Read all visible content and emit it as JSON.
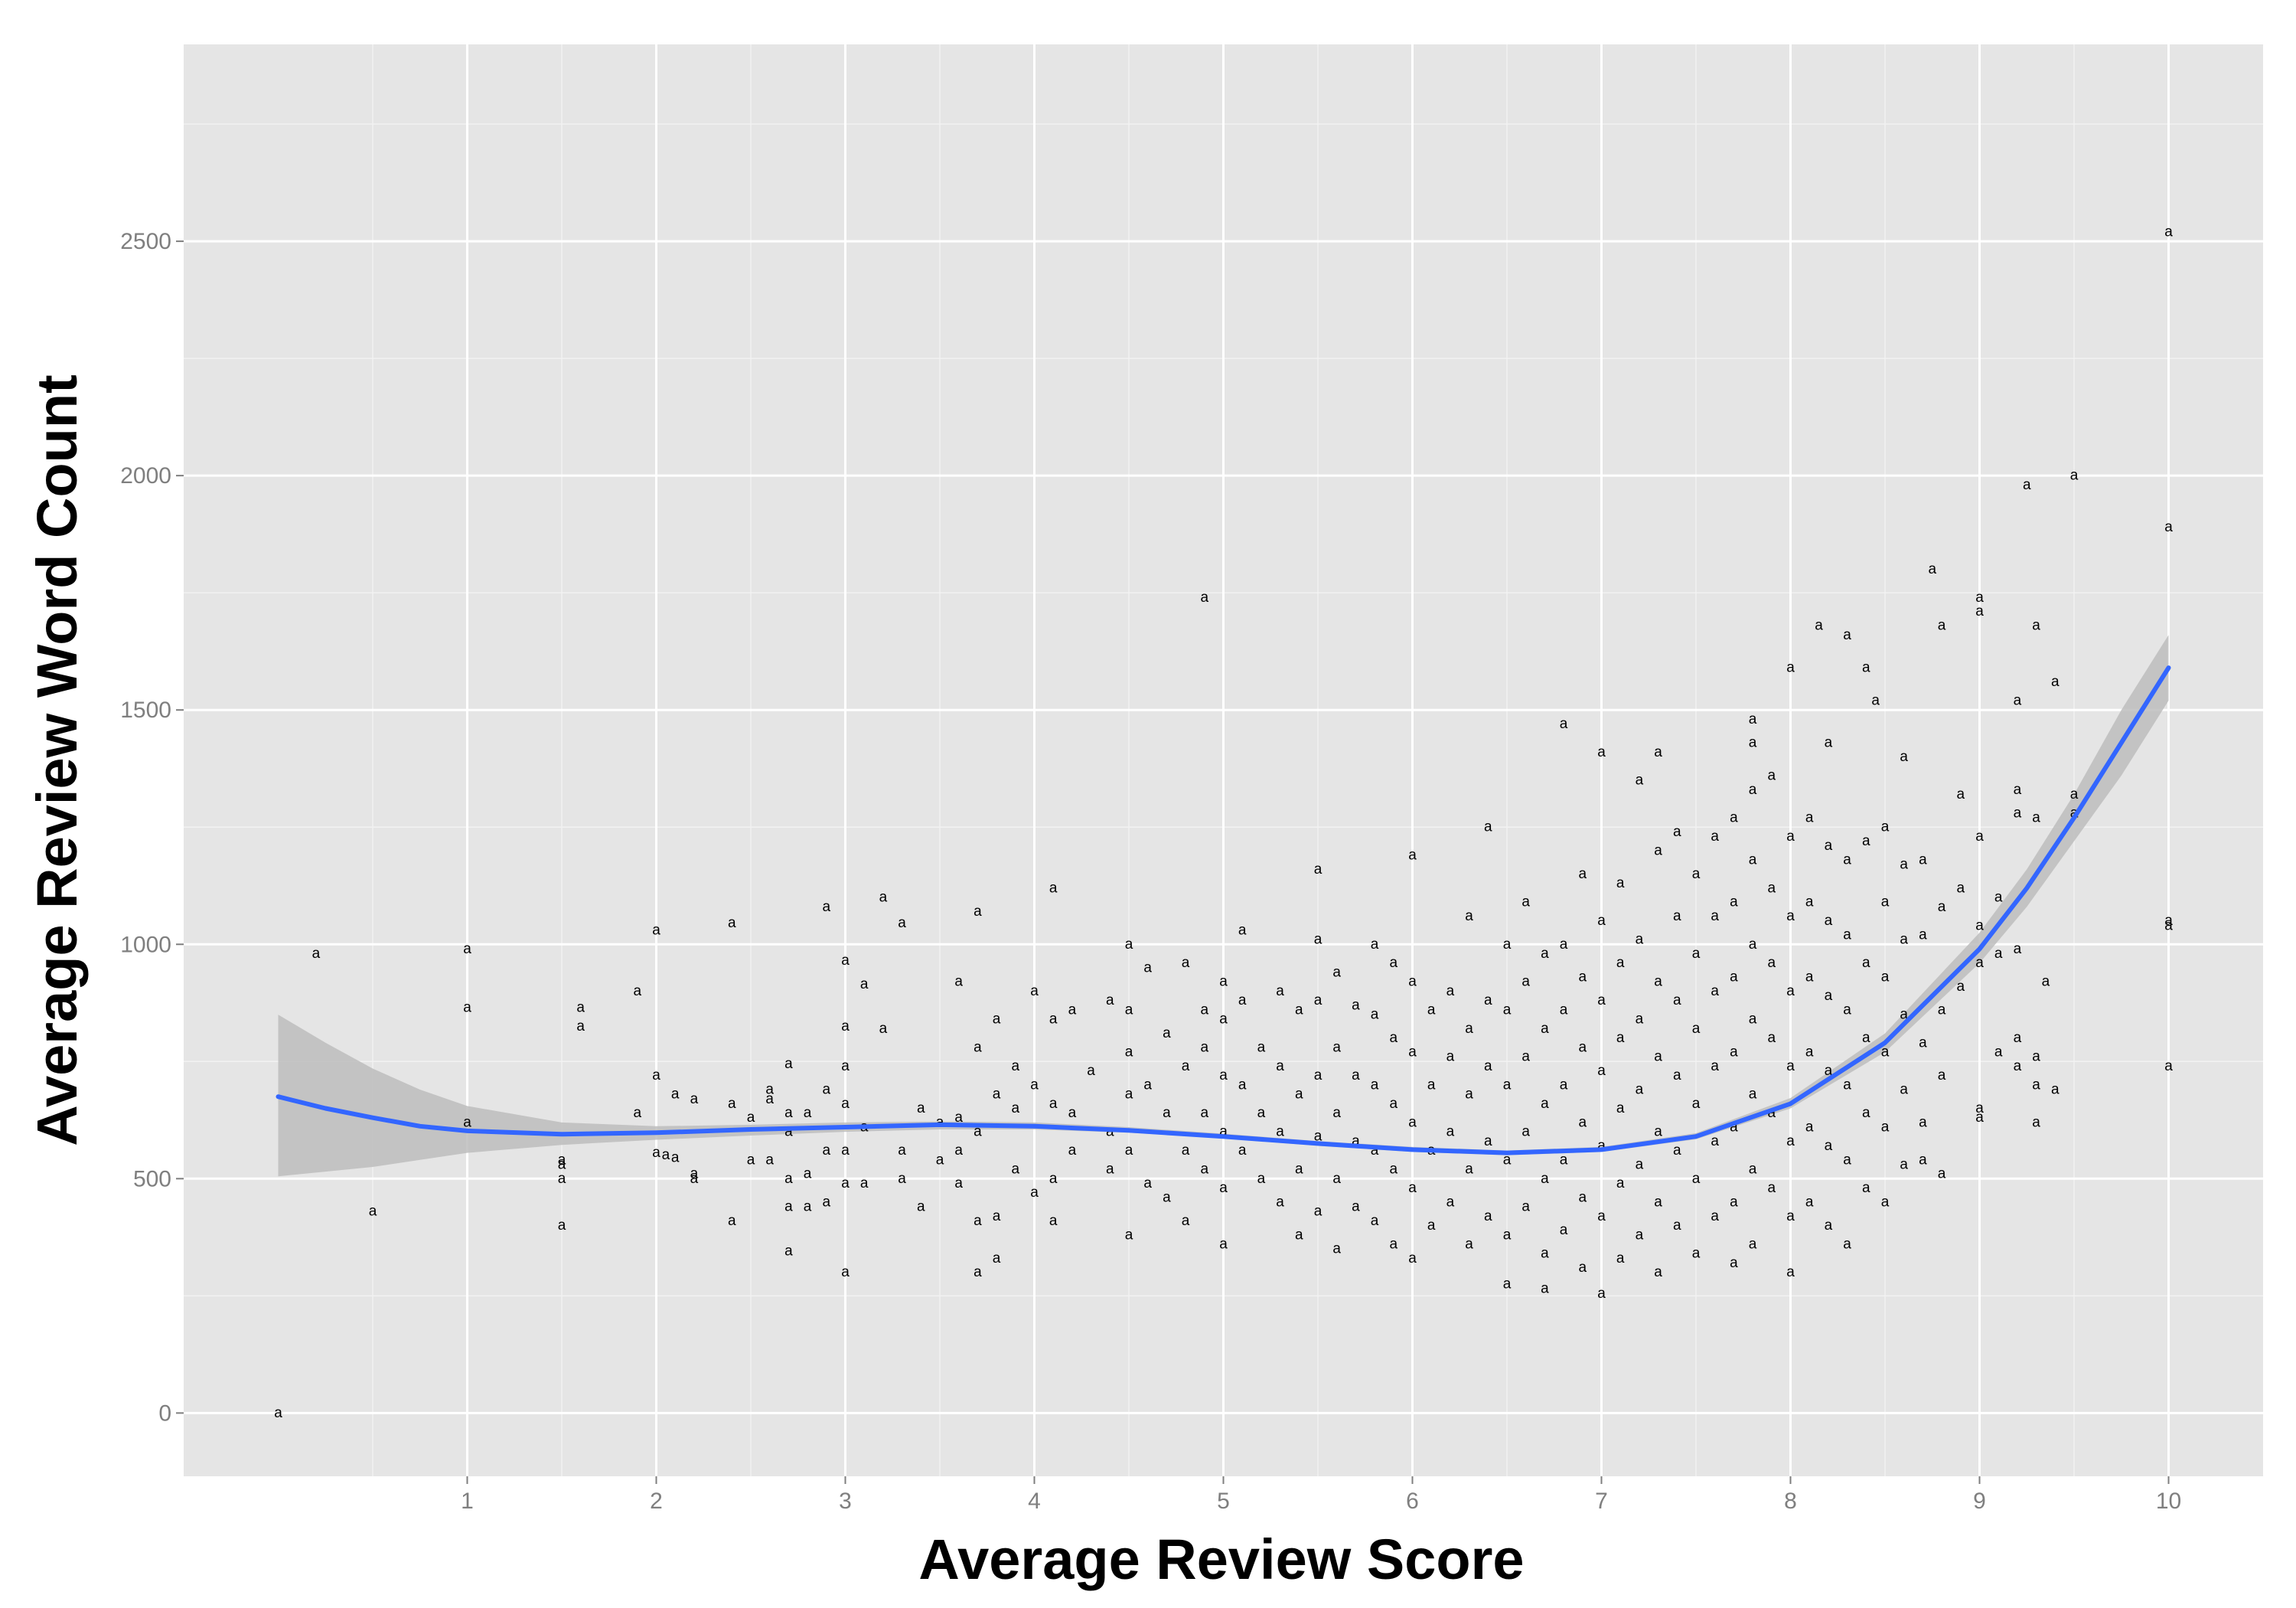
{
  "chart_data": {
    "type": "scatter",
    "title": "",
    "xlabel": "Average Review Score",
    "ylabel": "Average Review Word Count",
    "xlim": [
      -0.5,
      10.5
    ],
    "ylim": [
      -135,
      2920
    ],
    "x_ticks": [
      1,
      2,
      3,
      4,
      5,
      6,
      7,
      8,
      9,
      10
    ],
    "x_tick_labels": [
      "1",
      "2",
      "3",
      "4",
      "5",
      "6",
      "7",
      "8",
      "9",
      "10"
    ],
    "y_ticks": [
      0,
      500,
      1000,
      1500,
      2000,
      2500
    ],
    "y_tick_labels": [
      "0",
      "500",
      "1000",
      "1500",
      "2000",
      "2500"
    ],
    "grid": true,
    "legend": "none",
    "point_glyph": "a",
    "colors": {
      "panel": "#e5e5e5",
      "grid_major": "#ffffff",
      "smooth_line": "#3366ff",
      "confidence_band": "#bdbdbd",
      "points": "#000000"
    },
    "points": [
      [
        0.0,
        0
      ],
      [
        0.2,
        980
      ],
      [
        0.5,
        430
      ],
      [
        1.0,
        990
      ],
      [
        1.0,
        865
      ],
      [
        1.0,
        620
      ],
      [
        1.5,
        540
      ],
      [
        1.5,
        530
      ],
      [
        1.5,
        500
      ],
      [
        1.5,
        400
      ],
      [
        1.6,
        865
      ],
      [
        1.6,
        825
      ],
      [
        1.9,
        900
      ],
      [
        1.9,
        640
      ],
      [
        2.0,
        1030
      ],
      [
        2.0,
        720
      ],
      [
        2.0,
        555
      ],
      [
        2.05,
        550
      ],
      [
        2.1,
        545
      ],
      [
        2.1,
        680
      ],
      [
        2.2,
        670
      ],
      [
        2.2,
        510
      ],
      [
        2.2,
        500
      ],
      [
        2.4,
        1045
      ],
      [
        2.4,
        660
      ],
      [
        2.4,
        410
      ],
      [
        2.5,
        630
      ],
      [
        2.5,
        540
      ],
      [
        2.6,
        690
      ],
      [
        2.6,
        670
      ],
      [
        2.6,
        540
      ],
      [
        2.7,
        745
      ],
      [
        2.7,
        640
      ],
      [
        2.7,
        600
      ],
      [
        2.7,
        500
      ],
      [
        2.7,
        440
      ],
      [
        2.7,
        345
      ],
      [
        2.8,
        640
      ],
      [
        2.8,
        510
      ],
      [
        2.8,
        440
      ],
      [
        2.9,
        1080
      ],
      [
        2.9,
        690
      ],
      [
        2.9,
        560
      ],
      [
        2.9,
        450
      ],
      [
        3.0,
        965
      ],
      [
        3.0,
        825
      ],
      [
        3.0,
        740
      ],
      [
        3.0,
        660
      ],
      [
        3.0,
        560
      ],
      [
        3.0,
        490
      ],
      [
        3.0,
        300
      ],
      [
        3.1,
        915
      ],
      [
        3.1,
        610
      ],
      [
        3.1,
        490
      ],
      [
        3.2,
        1100
      ],
      [
        3.2,
        820
      ],
      [
        3.3,
        1045
      ],
      [
        3.3,
        560
      ],
      [
        3.3,
        500
      ],
      [
        3.4,
        650
      ],
      [
        3.4,
        440
      ],
      [
        3.5,
        620
      ],
      [
        3.5,
        540
      ],
      [
        3.6,
        920
      ],
      [
        3.6,
        630
      ],
      [
        3.6,
        560
      ],
      [
        3.6,
        490
      ],
      [
        3.7,
        1070
      ],
      [
        3.7,
        780
      ],
      [
        3.7,
        600
      ],
      [
        3.7,
        410
      ],
      [
        3.7,
        300
      ],
      [
        3.8,
        840
      ],
      [
        3.8,
        680
      ],
      [
        3.8,
        420
      ],
      [
        3.8,
        330
      ],
      [
        3.9,
        740
      ],
      [
        3.9,
        650
      ],
      [
        3.9,
        520
      ],
      [
        4.0,
        900
      ],
      [
        4.0,
        700
      ],
      [
        4.0,
        470
      ],
      [
        4.1,
        1120
      ],
      [
        4.1,
        840
      ],
      [
        4.1,
        660
      ],
      [
        4.1,
        500
      ],
      [
        4.1,
        410
      ],
      [
        4.2,
        860
      ],
      [
        4.2,
        640
      ],
      [
        4.2,
        560
      ],
      [
        4.3,
        730
      ],
      [
        4.4,
        880
      ],
      [
        4.4,
        600
      ],
      [
        4.4,
        520
      ],
      [
        4.5,
        1000
      ],
      [
        4.5,
        860
      ],
      [
        4.5,
        770
      ],
      [
        4.5,
        680
      ],
      [
        4.5,
        560
      ],
      [
        4.5,
        380
      ],
      [
        4.6,
        950
      ],
      [
        4.6,
        700
      ],
      [
        4.6,
        490
      ],
      [
        4.7,
        810
      ],
      [
        4.7,
        640
      ],
      [
        4.7,
        460
      ],
      [
        4.8,
        960
      ],
      [
        4.8,
        740
      ],
      [
        4.8,
        560
      ],
      [
        4.8,
        410
      ],
      [
        4.9,
        1740
      ],
      [
        4.9,
        860
      ],
      [
        4.9,
        780
      ],
      [
        4.9,
        640
      ],
      [
        4.9,
        520
      ],
      [
        5.0,
        920
      ],
      [
        5.0,
        840
      ],
      [
        5.0,
        720
      ],
      [
        5.0,
        600
      ],
      [
        5.0,
        480
      ],
      [
        5.0,
        360
      ],
      [
        5.1,
        1030
      ],
      [
        5.1,
        880
      ],
      [
        5.1,
        700
      ],
      [
        5.1,
        560
      ],
      [
        5.2,
        780
      ],
      [
        5.2,
        640
      ],
      [
        5.2,
        500
      ],
      [
        5.3,
        900
      ],
      [
        5.3,
        740
      ],
      [
        5.3,
        600
      ],
      [
        5.3,
        450
      ],
      [
        5.4,
        860
      ],
      [
        5.4,
        680
      ],
      [
        5.4,
        520
      ],
      [
        5.4,
        380
      ],
      [
        5.5,
        1160
      ],
      [
        5.5,
        1010
      ],
      [
        5.5,
        880
      ],
      [
        5.5,
        720
      ],
      [
        5.5,
        590
      ],
      [
        5.5,
        430
      ],
      [
        5.6,
        940
      ],
      [
        5.6,
        780
      ],
      [
        5.6,
        640
      ],
      [
        5.6,
        500
      ],
      [
        5.6,
        350
      ],
      [
        5.7,
        870
      ],
      [
        5.7,
        720
      ],
      [
        5.7,
        580
      ],
      [
        5.7,
        440
      ],
      [
        5.8,
        1000
      ],
      [
        5.8,
        850
      ],
      [
        5.8,
        700
      ],
      [
        5.8,
        560
      ],
      [
        5.8,
        410
      ],
      [
        5.9,
        960
      ],
      [
        5.9,
        800
      ],
      [
        5.9,
        660
      ],
      [
        5.9,
        520
      ],
      [
        5.9,
        360
      ],
      [
        6.0,
        1190
      ],
      [
        6.0,
        920
      ],
      [
        6.0,
        770
      ],
      [
        6.0,
        620
      ],
      [
        6.0,
        480
      ],
      [
        6.0,
        330
      ],
      [
        6.1,
        860
      ],
      [
        6.1,
        700
      ],
      [
        6.1,
        560
      ],
      [
        6.1,
        400
      ],
      [
        6.2,
        900
      ],
      [
        6.2,
        760
      ],
      [
        6.2,
        600
      ],
      [
        6.2,
        450
      ],
      [
        6.3,
        1060
      ],
      [
        6.3,
        820
      ],
      [
        6.3,
        680
      ],
      [
        6.3,
        520
      ],
      [
        6.3,
        360
      ],
      [
        6.4,
        1250
      ],
      [
        6.4,
        880
      ],
      [
        6.4,
        740
      ],
      [
        6.4,
        580
      ],
      [
        6.4,
        420
      ],
      [
        6.5,
        1000
      ],
      [
        6.5,
        860
      ],
      [
        6.5,
        700
      ],
      [
        6.5,
        540
      ],
      [
        6.5,
        380
      ],
      [
        6.5,
        275
      ],
      [
        6.6,
        1090
      ],
      [
        6.6,
        920
      ],
      [
        6.6,
        760
      ],
      [
        6.6,
        600
      ],
      [
        6.6,
        440
      ],
      [
        6.7,
        980
      ],
      [
        6.7,
        820
      ],
      [
        6.7,
        660
      ],
      [
        6.7,
        500
      ],
      [
        6.7,
        340
      ],
      [
        6.7,
        265
      ],
      [
        6.8,
        1470
      ],
      [
        6.8,
        1000
      ],
      [
        6.8,
        860
      ],
      [
        6.8,
        700
      ],
      [
        6.8,
        540
      ],
      [
        6.8,
        390
      ],
      [
        6.9,
        1150
      ],
      [
        6.9,
        930
      ],
      [
        6.9,
        780
      ],
      [
        6.9,
        620
      ],
      [
        6.9,
        460
      ],
      [
        6.9,
        310
      ],
      [
        7.0,
        1410
      ],
      [
        7.0,
        1050
      ],
      [
        7.0,
        880
      ],
      [
        7.0,
        730
      ],
      [
        7.0,
        570
      ],
      [
        7.0,
        420
      ],
      [
        7.0,
        255
      ],
      [
        7.1,
        1130
      ],
      [
        7.1,
        960
      ],
      [
        7.1,
        800
      ],
      [
        7.1,
        650
      ],
      [
        7.1,
        490
      ],
      [
        7.1,
        330
      ],
      [
        7.2,
        1350
      ],
      [
        7.2,
        1010
      ],
      [
        7.2,
        840
      ],
      [
        7.2,
        690
      ],
      [
        7.2,
        530
      ],
      [
        7.2,
        380
      ],
      [
        7.3,
        1410
      ],
      [
        7.3,
        1200
      ],
      [
        7.3,
        920
      ],
      [
        7.3,
        760
      ],
      [
        7.3,
        600
      ],
      [
        7.3,
        450
      ],
      [
        7.3,
        300
      ],
      [
        7.4,
        1240
      ],
      [
        7.4,
        1060
      ],
      [
        7.4,
        880
      ],
      [
        7.4,
        720
      ],
      [
        7.4,
        560
      ],
      [
        7.4,
        400
      ],
      [
        7.5,
        1150
      ],
      [
        7.5,
        980
      ],
      [
        7.5,
        820
      ],
      [
        7.5,
        660
      ],
      [
        7.5,
        500
      ],
      [
        7.5,
        340
      ],
      [
        7.6,
        1230
      ],
      [
        7.6,
        1060
      ],
      [
        7.6,
        900
      ],
      [
        7.6,
        740
      ],
      [
        7.6,
        580
      ],
      [
        7.6,
        420
      ],
      [
        7.7,
        1270
      ],
      [
        7.7,
        1090
      ],
      [
        7.7,
        930
      ],
      [
        7.7,
        770
      ],
      [
        7.7,
        610
      ],
      [
        7.7,
        450
      ],
      [
        7.7,
        320
      ],
      [
        7.8,
        1480
      ],
      [
        7.8,
        1430
      ],
      [
        7.8,
        1330
      ],
      [
        7.8,
        1180
      ],
      [
        7.8,
        1000
      ],
      [
        7.8,
        840
      ],
      [
        7.8,
        680
      ],
      [
        7.8,
        520
      ],
      [
        7.8,
        360
      ],
      [
        7.9,
        1360
      ],
      [
        7.9,
        1120
      ],
      [
        7.9,
        960
      ],
      [
        7.9,
        800
      ],
      [
        7.9,
        640
      ],
      [
        7.9,
        480
      ],
      [
        8.0,
        1590
      ],
      [
        8.0,
        1230
      ],
      [
        8.0,
        1060
      ],
      [
        8.0,
        900
      ],
      [
        8.0,
        740
      ],
      [
        8.0,
        580
      ],
      [
        8.0,
        420
      ],
      [
        8.0,
        300
      ],
      [
        8.1,
        1270
      ],
      [
        8.1,
        1090
      ],
      [
        8.1,
        930
      ],
      [
        8.1,
        770
      ],
      [
        8.1,
        610
      ],
      [
        8.1,
        450
      ],
      [
        8.15,
        1680
      ],
      [
        8.2,
        1430
      ],
      [
        8.2,
        1210
      ],
      [
        8.2,
        1050
      ],
      [
        8.2,
        890
      ],
      [
        8.2,
        730
      ],
      [
        8.2,
        570
      ],
      [
        8.2,
        400
      ],
      [
        8.3,
        1660
      ],
      [
        8.3,
        1180
      ],
      [
        8.3,
        1020
      ],
      [
        8.3,
        860
      ],
      [
        8.3,
        700
      ],
      [
        8.3,
        540
      ],
      [
        8.3,
        360
      ],
      [
        8.4,
        1590
      ],
      [
        8.4,
        1220
      ],
      [
        8.4,
        960
      ],
      [
        8.4,
        800
      ],
      [
        8.4,
        640
      ],
      [
        8.4,
        480
      ],
      [
        8.45,
        1520
      ],
      [
        8.5,
        1250
      ],
      [
        8.5,
        1090
      ],
      [
        8.5,
        930
      ],
      [
        8.5,
        770
      ],
      [
        8.5,
        610
      ],
      [
        8.5,
        450
      ],
      [
        8.6,
        1400
      ],
      [
        8.6,
        1170
      ],
      [
        8.6,
        1010
      ],
      [
        8.6,
        850
      ],
      [
        8.6,
        690
      ],
      [
        8.6,
        530
      ],
      [
        8.7,
        1180
      ],
      [
        8.7,
        1020
      ],
      [
        8.7,
        790
      ],
      [
        8.7,
        620
      ],
      [
        8.7,
        540
      ],
      [
        8.75,
        1800
      ],
      [
        8.8,
        1680
      ],
      [
        8.8,
        1080
      ],
      [
        8.8,
        860
      ],
      [
        8.8,
        720
      ],
      [
        8.8,
        510
      ],
      [
        8.9,
        1320
      ],
      [
        8.9,
        1120
      ],
      [
        8.9,
        910
      ],
      [
        9.0,
        1740
      ],
      [
        9.0,
        1710
      ],
      [
        9.0,
        1230
      ],
      [
        9.0,
        1040
      ],
      [
        9.0,
        960
      ],
      [
        9.0,
        650
      ],
      [
        9.0,
        630
      ],
      [
        9.1,
        1100
      ],
      [
        9.1,
        980
      ],
      [
        9.1,
        770
      ],
      [
        9.2,
        1520
      ],
      [
        9.2,
        1330
      ],
      [
        9.2,
        1280
      ],
      [
        9.2,
        990
      ],
      [
        9.2,
        800
      ],
      [
        9.2,
        740
      ],
      [
        9.25,
        1980
      ],
      [
        9.3,
        1680
      ],
      [
        9.3,
        1270
      ],
      [
        9.3,
        760
      ],
      [
        9.3,
        700
      ],
      [
        9.3,
        620
      ],
      [
        9.35,
        920
      ],
      [
        9.4,
        1560
      ],
      [
        9.4,
        690
      ],
      [
        9.5,
        2000
      ],
      [
        9.5,
        1320
      ],
      [
        9.5,
        1280
      ],
      [
        10.0,
        2520
      ],
      [
        10.0,
        1890
      ],
      [
        10.0,
        1050
      ],
      [
        10.0,
        1040
      ],
      [
        10.0,
        740
      ]
    ],
    "smooth": {
      "x": [
        0.0,
        0.25,
        0.5,
        0.75,
        1.0,
        1.5,
        2.0,
        2.5,
        3.0,
        3.5,
        4.0,
        4.5,
        5.0,
        5.5,
        6.0,
        6.5,
        7.0,
        7.5,
        8.0,
        8.5,
        9.0,
        9.25,
        9.5,
        9.75,
        10.0
      ],
      "y": [
        675,
        650,
        630,
        612,
        602,
        595,
        598,
        605,
        610,
        615,
        612,
        603,
        590,
        575,
        562,
        555,
        562,
        590,
        660,
        790,
        990,
        1120,
        1270,
        1430,
        1590
      ],
      "lower": [
        505,
        515,
        525,
        540,
        555,
        572,
        583,
        592,
        600,
        605,
        605,
        598,
        586,
        570,
        557,
        550,
        557,
        584,
        650,
        770,
        960,
        1080,
        1220,
        1360,
        1520
      ],
      "upper": [
        850,
        790,
        735,
        690,
        655,
        620,
        612,
        615,
        620,
        622,
        620,
        610,
        596,
        580,
        568,
        560,
        568,
        597,
        672,
        810,
        1025,
        1160,
        1320,
        1500,
        1660
      ]
    }
  }
}
